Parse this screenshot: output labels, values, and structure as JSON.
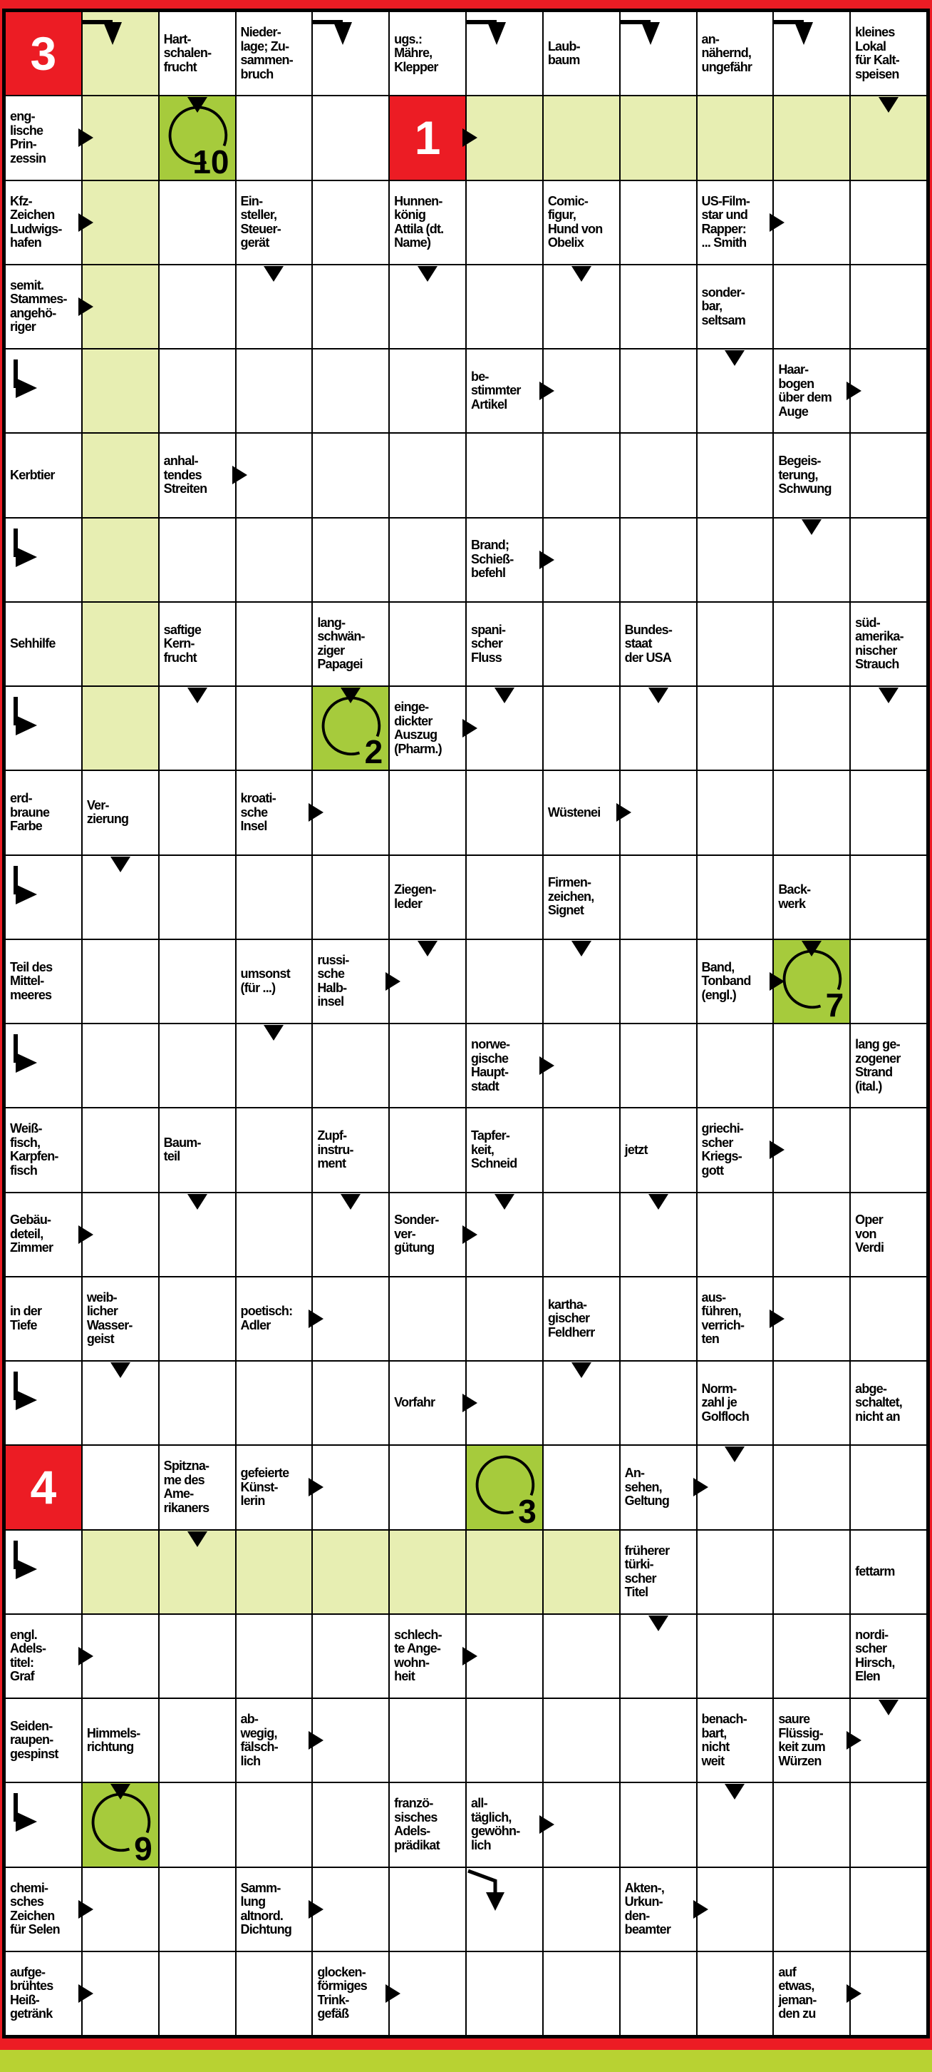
{
  "puzzle": {
    "type": "arrow-word crossword (Schwedenraetsel)",
    "grid": {
      "cols": 12,
      "rows": 24
    },
    "colors": {
      "frame_red": "#ec1c24",
      "highlight_light_green": "#e7eeb2",
      "solution_cell_green": "#a6cb3c",
      "bottom_band_green": "#b8d232",
      "ink": "#000000"
    },
    "solution_numbers_red": [
      "3",
      "1",
      "4"
    ],
    "solution_letters_circled": [
      "10",
      "2",
      "7",
      "3",
      "9"
    ],
    "cells": [
      {
        "r": 0,
        "c": 0,
        "t": "red",
        "n": "3"
      },
      {
        "r": 0,
        "c": 1,
        "t": "green",
        "a": [
          "bd"
        ]
      },
      {
        "r": 0,
        "c": 2,
        "t": "clue",
        "x": "Hart-\nschalen-\nfrucht"
      },
      {
        "r": 0,
        "c": 3,
        "t": "clue",
        "x": "Nieder-\nlage; Zu-\nsammen-\nbruch"
      },
      {
        "r": 0,
        "c": 4,
        "t": "empty",
        "a": [
          "bd"
        ]
      },
      {
        "r": 0,
        "c": 5,
        "t": "clue",
        "x": "ugs.:\nMähre,\nKlepper"
      },
      {
        "r": 0,
        "c": 6,
        "t": "empty",
        "a": [
          "bd"
        ]
      },
      {
        "r": 0,
        "c": 7,
        "t": "clue",
        "x": "Laub-\nbaum"
      },
      {
        "r": 0,
        "c": 8,
        "t": "empty",
        "a": [
          "bd"
        ]
      },
      {
        "r": 0,
        "c": 9,
        "t": "clue",
        "x": "an-\nnähernd,\nungefähr"
      },
      {
        "r": 0,
        "c": 10,
        "t": "empty",
        "a": [
          "bd"
        ]
      },
      {
        "r": 0,
        "c": 11,
        "t": "clue",
        "x": "kleines\nLokal\nfür Kalt-\nspeisen"
      },
      {
        "r": 1,
        "c": 0,
        "t": "clue",
        "x": "eng-\nlische\nPrin-\nzessin",
        "a": [
          "r"
        ]
      },
      {
        "r": 1,
        "c": 1,
        "t": "green"
      },
      {
        "r": 1,
        "c": 2,
        "t": "circle",
        "n": "10",
        "a": [
          "d"
        ]
      },
      {
        "r": 1,
        "c": 5,
        "t": "red",
        "n": "1",
        "a": [
          "r"
        ]
      },
      {
        "r": 1,
        "c": 6,
        "t": "green"
      },
      {
        "r": 1,
        "c": 7,
        "t": "green"
      },
      {
        "r": 1,
        "c": 8,
        "t": "green"
      },
      {
        "r": 1,
        "c": 9,
        "t": "green"
      },
      {
        "r": 1,
        "c": 10,
        "t": "green"
      },
      {
        "r": 1,
        "c": 11,
        "t": "green",
        "a": [
          "d"
        ]
      },
      {
        "r": 2,
        "c": 0,
        "t": "clue",
        "x": "Kfz-\nZeichen\nLudwigs-\nhafen",
        "a": [
          "r"
        ]
      },
      {
        "r": 2,
        "c": 1,
        "t": "green"
      },
      {
        "r": 2,
        "c": 3,
        "t": "clue",
        "x": "Ein-\nsteller,\nSteuer-\ngerät"
      },
      {
        "r": 2,
        "c": 5,
        "t": "clue",
        "x": "Hunnen-\nkönig\nAttila (dt.\nName)"
      },
      {
        "r": 2,
        "c": 7,
        "t": "clue",
        "x": "Comic-\nfigur,\nHund von\nObelix"
      },
      {
        "r": 2,
        "c": 9,
        "t": "clue",
        "x": "US-Film-\nstar und\nRapper:\n... Smith",
        "a": [
          "r"
        ]
      },
      {
        "r": 3,
        "c": 0,
        "t": "clue",
        "x": "semit.\nStammes-\nangehö-\nriger",
        "a": [
          "r"
        ]
      },
      {
        "r": 3,
        "c": 1,
        "t": "green"
      },
      {
        "r": 3,
        "c": 3,
        "t": "empty",
        "a": [
          "d"
        ]
      },
      {
        "r": 3,
        "c": 5,
        "t": "empty",
        "a": [
          "d"
        ]
      },
      {
        "r": 3,
        "c": 7,
        "t": "empty",
        "a": [
          "d"
        ]
      },
      {
        "r": 3,
        "c": 9,
        "t": "clue",
        "x": "sonder-\nbar,\nseltsam"
      },
      {
        "r": 4,
        "c": 0,
        "t": "empty",
        "a": [
          "br"
        ]
      },
      {
        "r": 4,
        "c": 1,
        "t": "green"
      },
      {
        "r": 4,
        "c": 6,
        "t": "clue",
        "x": "be-\nstimmter\nArtikel",
        "a": [
          "r"
        ]
      },
      {
        "r": 4,
        "c": 9,
        "t": "empty",
        "a": [
          "d"
        ]
      },
      {
        "r": 4,
        "c": 10,
        "t": "clue",
        "x": "Haar-\nbogen\nüber dem\nAuge",
        "a": [
          "r"
        ]
      },
      {
        "r": 5,
        "c": 0,
        "t": "clue",
        "x": "Kerbtier"
      },
      {
        "r": 5,
        "c": 1,
        "t": "green"
      },
      {
        "r": 5,
        "c": 2,
        "t": "clue",
        "x": "anhal-\ntendes\nStreiten",
        "a": [
          "r"
        ]
      },
      {
        "r": 5,
        "c": 10,
        "t": "clue",
        "x": "Begeis-\nterung,\nSchwung"
      },
      {
        "r": 6,
        "c": 0,
        "t": "empty",
        "a": [
          "br"
        ]
      },
      {
        "r": 6,
        "c": 1,
        "t": "green"
      },
      {
        "r": 6,
        "c": 6,
        "t": "clue",
        "x": "Brand;\nSchieß-\nbefehl",
        "a": [
          "r"
        ]
      },
      {
        "r": 6,
        "c": 10,
        "t": "empty",
        "a": [
          "d"
        ]
      },
      {
        "r": 7,
        "c": 0,
        "t": "clue",
        "x": "Sehhilfe"
      },
      {
        "r": 7,
        "c": 1,
        "t": "green"
      },
      {
        "r": 7,
        "c": 2,
        "t": "clue",
        "x": "saftige\nKern-\nfrucht"
      },
      {
        "r": 7,
        "c": 4,
        "t": "clue",
        "x": "lang-\nschwän-\nziger\nPapagei"
      },
      {
        "r": 7,
        "c": 6,
        "t": "clue",
        "x": "spani-\nscher\nFluss"
      },
      {
        "r": 7,
        "c": 8,
        "t": "clue",
        "x": "Bundes-\nstaat\nder USA"
      },
      {
        "r": 7,
        "c": 11,
        "t": "clue",
        "x": "süd-\namerika-\nnischer\nStrauch"
      },
      {
        "r": 8,
        "c": 0,
        "t": "empty",
        "a": [
          "br"
        ]
      },
      {
        "r": 8,
        "c": 1,
        "t": "green"
      },
      {
        "r": 8,
        "c": 2,
        "t": "empty",
        "a": [
          "d"
        ]
      },
      {
        "r": 8,
        "c": 4,
        "t": "circle",
        "n": "2",
        "a": [
          "d"
        ]
      },
      {
        "r": 8,
        "c": 5,
        "t": "clue",
        "x": "einge-\ndickter\nAuszug\n(Pharm.)",
        "a": [
          "r"
        ]
      },
      {
        "r": 8,
        "c": 6,
        "t": "empty",
        "a": [
          "d"
        ]
      },
      {
        "r": 8,
        "c": 8,
        "t": "empty",
        "a": [
          "d"
        ]
      },
      {
        "r": 8,
        "c": 11,
        "t": "empty",
        "a": [
          "d"
        ]
      },
      {
        "r": 9,
        "c": 0,
        "t": "clue",
        "x": "erd-\nbraune\nFarbe"
      },
      {
        "r": 9,
        "c": 1,
        "t": "clue",
        "x": "Ver-\nzierung"
      },
      {
        "r": 9,
        "c": 3,
        "t": "clue",
        "x": "kroati-\nsche\nInsel",
        "a": [
          "r"
        ]
      },
      {
        "r": 9,
        "c": 7,
        "t": "clue",
        "x": "Wüstenei",
        "a": [
          "r"
        ]
      },
      {
        "r": 10,
        "c": 0,
        "t": "empty",
        "a": [
          "br"
        ]
      },
      {
        "r": 10,
        "c": 1,
        "t": "empty",
        "a": [
          "d"
        ]
      },
      {
        "r": 10,
        "c": 5,
        "t": "clue",
        "x": "Ziegen-\nleder"
      },
      {
        "r": 10,
        "c": 7,
        "t": "clue",
        "x": "Firmen-\nzeichen,\nSignet"
      },
      {
        "r": 10,
        "c": 10,
        "t": "clue",
        "x": "Back-\nwerk"
      },
      {
        "r": 11,
        "c": 0,
        "t": "clue",
        "x": "Teil des\nMittel-\nmeeres"
      },
      {
        "r": 11,
        "c": 3,
        "t": "clue",
        "x": "umsonst\n(für ...)"
      },
      {
        "r": 11,
        "c": 4,
        "t": "clue",
        "x": "russi-\nsche\nHalb-\ninsel",
        "a": [
          "r"
        ]
      },
      {
        "r": 11,
        "c": 5,
        "t": "empty",
        "a": [
          "d"
        ]
      },
      {
        "r": 11,
        "c": 7,
        "t": "empty",
        "a": [
          "d"
        ]
      },
      {
        "r": 11,
        "c": 9,
        "t": "clue",
        "x": "Band,\nTonband\n(engl.)",
        "a": [
          "r"
        ]
      },
      {
        "r": 11,
        "c": 10,
        "t": "circle",
        "n": "7",
        "a": [
          "d"
        ]
      },
      {
        "r": 12,
        "c": 0,
        "t": "empty",
        "a": [
          "br"
        ]
      },
      {
        "r": 12,
        "c": 3,
        "t": "empty",
        "a": [
          "d"
        ]
      },
      {
        "r": 12,
        "c": 6,
        "t": "clue",
        "x": "norwe-\ngische\nHaupt-\nstadt",
        "a": [
          "r"
        ]
      },
      {
        "r": 12,
        "c": 11,
        "t": "clue",
        "x": "lang ge-\nzogener\nStrand\n(ital.)"
      },
      {
        "r": 13,
        "c": 0,
        "t": "clue",
        "x": "Weiß-\nfisch,\nKarpfen-\nfisch"
      },
      {
        "r": 13,
        "c": 2,
        "t": "clue",
        "x": "Baum-\nteil"
      },
      {
        "r": 13,
        "c": 4,
        "t": "clue",
        "x": "Zupf-\ninstru-\nment"
      },
      {
        "r": 13,
        "c": 6,
        "t": "clue",
        "x": "Tapfer-\nkeit,\nSchneid"
      },
      {
        "r": 13,
        "c": 8,
        "t": "clue",
        "x": "jetzt"
      },
      {
        "r": 13,
        "c": 9,
        "t": "clue",
        "x": "griechi-\nscher\nKriegs-\ngott",
        "a": [
          "r"
        ]
      },
      {
        "r": 14,
        "c": 0,
        "t": "clue",
        "x": "Gebäu-\ndeteil,\nZimmer",
        "a": [
          "r"
        ]
      },
      {
        "r": 14,
        "c": 2,
        "t": "empty",
        "a": [
          "d"
        ]
      },
      {
        "r": 14,
        "c": 4,
        "t": "empty",
        "a": [
          "d"
        ]
      },
      {
        "r": 14,
        "c": 5,
        "t": "clue",
        "x": "Sonder-\nver-\ngütung",
        "a": [
          "r"
        ]
      },
      {
        "r": 14,
        "c": 6,
        "t": "empty",
        "a": [
          "d"
        ]
      },
      {
        "r": 14,
        "c": 8,
        "t": "empty",
        "a": [
          "d"
        ]
      },
      {
        "r": 14,
        "c": 11,
        "t": "clue",
        "x": "Oper\nvon\nVerdi"
      },
      {
        "r": 15,
        "c": 0,
        "t": "clue",
        "x": "in der\nTiefe"
      },
      {
        "r": 15,
        "c": 1,
        "t": "clue",
        "x": "weib-\nlicher\nWasser-\ngeist"
      },
      {
        "r": 15,
        "c": 3,
        "t": "clue",
        "x": "poetisch:\nAdler",
        "a": [
          "r"
        ]
      },
      {
        "r": 15,
        "c": 7,
        "t": "clue",
        "x": "kartha-\ngischer\nFeldherr"
      },
      {
        "r": 15,
        "c": 9,
        "t": "clue",
        "x": "aus-\nführen,\nverrich-\nten",
        "a": [
          "r"
        ]
      },
      {
        "r": 16,
        "c": 0,
        "t": "empty",
        "a": [
          "br"
        ]
      },
      {
        "r": 16,
        "c": 1,
        "t": "empty",
        "a": [
          "d"
        ]
      },
      {
        "r": 16,
        "c": 5,
        "t": "clue",
        "x": "Vorfahr",
        "a": [
          "r"
        ]
      },
      {
        "r": 16,
        "c": 7,
        "t": "empty",
        "a": [
          "d"
        ]
      },
      {
        "r": 16,
        "c": 9,
        "t": "clue",
        "x": "Norm-\nzahl je\nGolfloch"
      },
      {
        "r": 16,
        "c": 11,
        "t": "clue",
        "x": "abge-\nschaltet,\nnicht an"
      },
      {
        "r": 17,
        "c": 0,
        "t": "red",
        "n": "4"
      },
      {
        "r": 17,
        "c": 2,
        "t": "clue",
        "x": "Spitzna-\nme des\nAme-\nrikaners"
      },
      {
        "r": 17,
        "c": 3,
        "t": "clue",
        "x": "gefeierte\nKünst-\nlerin",
        "a": [
          "r"
        ]
      },
      {
        "r": 17,
        "c": 6,
        "t": "circle",
        "n": "3"
      },
      {
        "r": 17,
        "c": 8,
        "t": "clue",
        "x": "An-\nsehen,\nGeltung",
        "a": [
          "r"
        ]
      },
      {
        "r": 17,
        "c": 9,
        "t": "empty",
        "a": [
          "d"
        ]
      },
      {
        "r": 18,
        "c": 0,
        "t": "empty",
        "a": [
          "br"
        ]
      },
      {
        "r": 18,
        "c": 1,
        "t": "green"
      },
      {
        "r": 18,
        "c": 2,
        "t": "green",
        "a": [
          "d"
        ]
      },
      {
        "r": 18,
        "c": 3,
        "t": "green"
      },
      {
        "r": 18,
        "c": 4,
        "t": "green"
      },
      {
        "r": 18,
        "c": 5,
        "t": "green"
      },
      {
        "r": 18,
        "c": 6,
        "t": "green"
      },
      {
        "r": 18,
        "c": 7,
        "t": "green"
      },
      {
        "r": 18,
        "c": 8,
        "t": "clue",
        "x": "früherer\ntürki-\nscher\nTitel"
      },
      {
        "r": 18,
        "c": 11,
        "t": "clue",
        "x": "fettarm"
      },
      {
        "r": 19,
        "c": 0,
        "t": "clue",
        "x": "engl.\nAdels-\ntitel:\nGraf",
        "a": [
          "r"
        ]
      },
      {
        "r": 19,
        "c": 5,
        "t": "clue",
        "x": "schlech-\nte Ange-\nwohn-\nheit",
        "a": [
          "r"
        ]
      },
      {
        "r": 19,
        "c": 8,
        "t": "empty",
        "a": [
          "d"
        ]
      },
      {
        "r": 19,
        "c": 11,
        "t": "clue",
        "x": "nordi-\nscher\nHirsch,\nElen"
      },
      {
        "r": 20,
        "c": 0,
        "t": "clue",
        "x": "Seiden-\nraupen-\ngespinst"
      },
      {
        "r": 20,
        "c": 1,
        "t": "clue",
        "x": "Himmels-\nrichtung"
      },
      {
        "r": 20,
        "c": 3,
        "t": "clue",
        "x": "ab-\nwegig,\nfälsch-\nlich",
        "a": [
          "r"
        ]
      },
      {
        "r": 20,
        "c": 9,
        "t": "clue",
        "x": "benach-\nbart,\nnicht\nweit"
      },
      {
        "r": 20,
        "c": 10,
        "t": "clue",
        "x": "saure\nFlüssig-\nkeit zum\nWürzen",
        "a": [
          "r"
        ]
      },
      {
        "r": 20,
        "c": 11,
        "t": "empty",
        "a": [
          "d"
        ]
      },
      {
        "r": 21,
        "c": 0,
        "t": "empty",
        "a": [
          "br"
        ]
      },
      {
        "r": 21,
        "c": 1,
        "t": "circle",
        "n": "9",
        "a": [
          "d"
        ]
      },
      {
        "r": 21,
        "c": 5,
        "t": "clue",
        "x": "franzö-\nsisches\nAdels-\nprädikat"
      },
      {
        "r": 21,
        "c": 6,
        "t": "clue",
        "x": "all-\ntäglich,\ngewöhn-\nlich",
        "a": [
          "r"
        ]
      },
      {
        "r": 21,
        "c": 9,
        "t": "empty",
        "a": [
          "d"
        ]
      },
      {
        "r": 22,
        "c": 0,
        "t": "clue",
        "x": "chemi-\nsches\nZeichen\nfür Selen",
        "a": [
          "r"
        ]
      },
      {
        "r": 22,
        "c": 3,
        "t": "clue",
        "x": "Samm-\nlung\naltnord.\nDichtung",
        "a": [
          "r"
        ]
      },
      {
        "r": 22,
        "c": 6,
        "t": "empty",
        "a": [
          "sd"
        ]
      },
      {
        "r": 22,
        "c": 8,
        "t": "clue",
        "x": "Akten-,\nUrkun-\nden-\nbeamter",
        "a": [
          "r"
        ]
      },
      {
        "r": 23,
        "c": 0,
        "t": "clue",
        "x": "aufge-\nbrühtes\nHeiß-\ngetränk",
        "a": [
          "r"
        ]
      },
      {
        "r": 23,
        "c": 4,
        "t": "clue",
        "x": "glocken-\nförmiges\nTrink-\ngefäß",
        "a": [
          "r"
        ]
      },
      {
        "r": 23,
        "c": 10,
        "t": "clue",
        "x": "auf\netwas,\njeman-\nden zu",
        "a": [
          "r"
        ]
      }
    ]
  }
}
